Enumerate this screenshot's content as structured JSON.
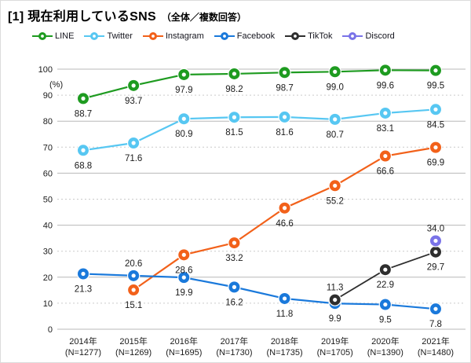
{
  "title": {
    "main": "[1] 現在利用しているSNS",
    "sub": "（全体／複数回答）"
  },
  "chart_data": {
    "type": "line",
    "title": "[1] 現在利用しているSNS（全体／複数回答）",
    "ylabel": "(%)",
    "ylim": [
      0,
      100
    ],
    "ytick_step": 10,
    "grid": "horizontal",
    "legend_position": "top",
    "categories": [
      "2014年",
      "2015年",
      "2016年",
      "2017年",
      "2018年",
      "2019年",
      "2020年",
      "2021年"
    ],
    "sample_sizes": [
      "(N=1277)",
      "(N=1269)",
      "(N=1695)",
      "(N=1730)",
      "(N=1735)",
      "(N=1705)",
      "(N=1390)",
      "(N=1480)"
    ],
    "series": [
      {
        "name": "LINE",
        "color": "#1e9b20",
        "values": [
          88.7,
          93.7,
          97.9,
          98.2,
          98.7,
          99.0,
          99.6,
          99.5
        ],
        "label_above": []
      },
      {
        "name": "Twitter",
        "color": "#57c7f2",
        "values": [
          68.8,
          71.6,
          80.9,
          81.5,
          81.6,
          80.7,
          83.1,
          84.5
        ],
        "label_above": []
      },
      {
        "name": "Instagram",
        "color": "#f2611a",
        "values": [
          null,
          15.1,
          28.6,
          33.2,
          46.6,
          55.2,
          66.6,
          69.9
        ],
        "label_above": []
      },
      {
        "name": "Facebook",
        "color": "#1a79db",
        "values": [
          21.3,
          20.6,
          19.9,
          16.2,
          11.8,
          9.9,
          9.5,
          7.8
        ],
        "label_above": [
          1
        ]
      },
      {
        "name": "TikTok",
        "color": "#2e2e2e",
        "values": [
          null,
          null,
          null,
          null,
          null,
          11.3,
          22.9,
          29.7
        ],
        "label_above": [
          5
        ]
      },
      {
        "name": "Discord",
        "color": "#7a73e8",
        "values": [
          null,
          null,
          null,
          null,
          null,
          null,
          null,
          34.0
        ],
        "label_above": [
          7
        ]
      }
    ]
  }
}
